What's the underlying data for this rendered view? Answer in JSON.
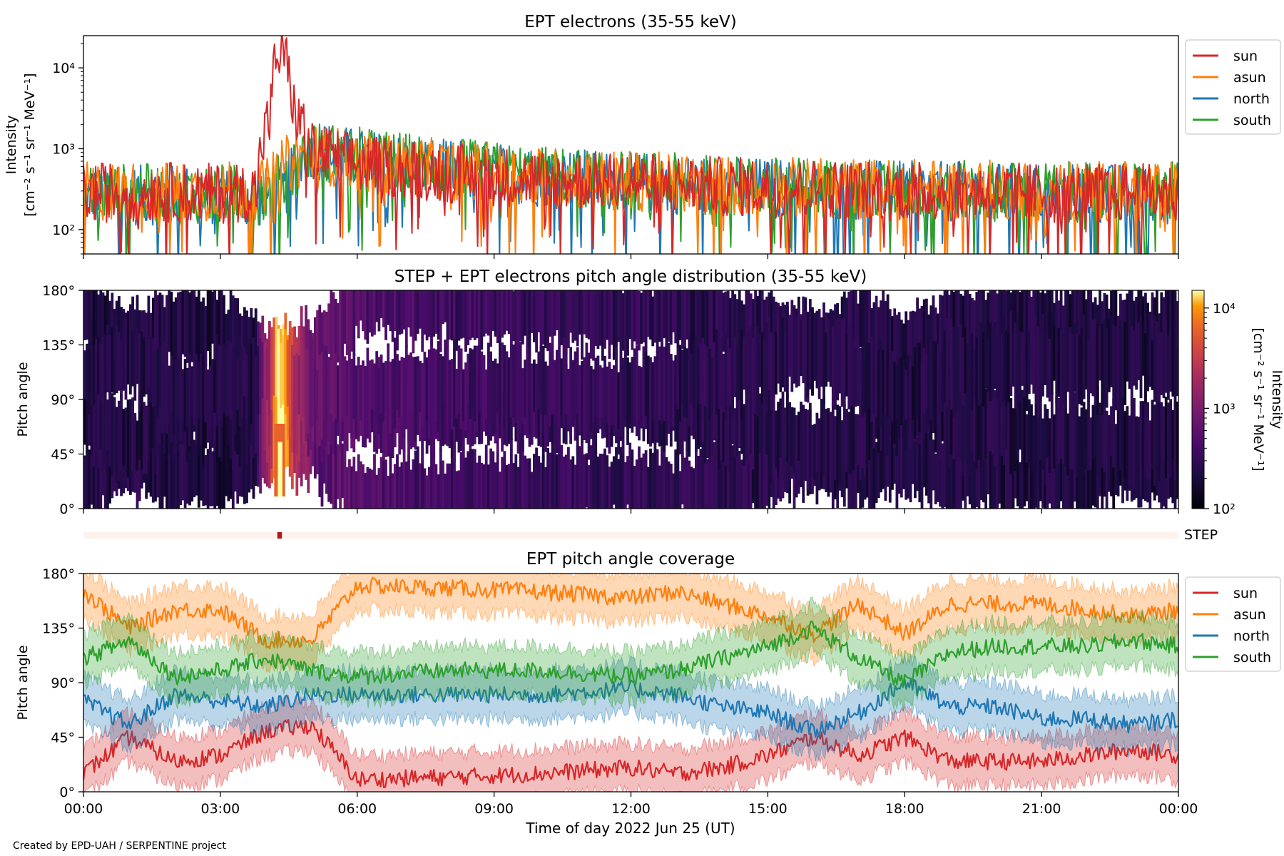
{
  "footer": {
    "credit": "Created by EPD-UAH / SERPENTINE project"
  },
  "colors": {
    "sun": "#d62728",
    "asun": "#ff7f0e",
    "north": "#1f77b4",
    "south": "#2ca02c"
  },
  "chart_data": [
    {
      "type": "line",
      "title": "EPT electrons (35-55 keV)",
      "xlabel": "",
      "ylabel": [
        "Intensity",
        "[cm⁻² s⁻¹ sr⁻¹ MeV⁻¹]"
      ],
      "yscale": "log",
      "ylim": [
        50,
        25000
      ],
      "yticks": [
        "10²",
        "10³",
        "10⁴"
      ],
      "xlim_hours": [
        0,
        24
      ],
      "legend_position": "right-outside-top",
      "legend": [
        "sun",
        "asun",
        "north",
        "south"
      ],
      "series": [
        {
          "name": "sun",
          "x_hours": [
            0,
            1,
            2,
            3,
            3.8,
            4.1,
            4.25,
            4.4,
            4.6,
            5,
            6,
            8,
            10,
            12,
            14,
            16,
            18,
            20,
            22,
            24
          ],
          "values": [
            280,
            300,
            290,
            280,
            300,
            2500,
            15000,
            14000,
            3000,
            900,
            650,
            500,
            420,
            380,
            340,
            320,
            300,
            290,
            280,
            280
          ]
        },
        {
          "name": "asun",
          "x_hours": [
            0,
            2,
            4,
            4.4,
            5,
            6,
            8,
            10,
            12,
            14,
            16,
            18,
            20,
            22,
            24
          ],
          "values": [
            300,
            290,
            310,
            600,
            900,
            700,
            550,
            450,
            400,
            350,
            330,
            320,
            310,
            300,
            300
          ]
        },
        {
          "name": "north",
          "x_hours": [
            0,
            2,
            4,
            4.4,
            5,
            6,
            8,
            10,
            12,
            14,
            16,
            18,
            20,
            22,
            24
          ],
          "values": [
            260,
            270,
            250,
            300,
            1000,
            750,
            550,
            450,
            390,
            340,
            320,
            300,
            290,
            280,
            270
          ]
        },
        {
          "name": "south",
          "x_hours": [
            0,
            2,
            4,
            4.4,
            5,
            6,
            8,
            10,
            12,
            14,
            16,
            18,
            20,
            22,
            24
          ],
          "values": [
            280,
            280,
            270,
            400,
            950,
            800,
            580,
            460,
            400,
            350,
            330,
            310,
            300,
            290,
            290
          ]
        }
      ]
    },
    {
      "type": "heatmap",
      "title": "STEP + EPT electrons pitch angle distribution (35-55 keV)",
      "xlabel": "",
      "ylabel": "Pitch angle",
      "ylim": [
        0,
        180
      ],
      "yticks": [
        "0°",
        "45°",
        "90°",
        "135°",
        "180°"
      ],
      "xlim_hours": [
        0,
        24
      ],
      "colorbar": {
        "label": [
          "Intensity",
          "[cm⁻² s⁻¹ sr⁻¹ MeV⁻¹]"
        ],
        "scale": "log",
        "range": [
          100,
          15000
        ],
        "ticks": [
          "10²",
          "10³",
          "10⁴"
        ],
        "colormap": "inferno"
      },
      "peak": {
        "time_hours": 4.3,
        "pitch_angle": [
          10,
          70
        ],
        "value": 15000
      }
    },
    {
      "type": "bar",
      "label": "STEP",
      "xlim_hours": [
        0,
        24
      ],
      "highlight_hours": [
        4.25,
        4.35
      ]
    },
    {
      "type": "line",
      "title": "EPT pitch angle coverage",
      "xlabel": "Time of day 2022 Jun 25 (UT)",
      "ylabel": "Pitch angle",
      "ylim": [
        0,
        180
      ],
      "yticks": [
        "0°",
        "45°",
        "90°",
        "135°",
        "180°"
      ],
      "xticks": [
        "00:00",
        "03:00",
        "06:00",
        "09:00",
        "12:00",
        "15:00",
        "18:00",
        "21:00",
        "00:00"
      ],
      "xlim_hours": [
        0,
        24
      ],
      "legend_position": "right-outside-top",
      "legend": [
        "sun",
        "asun",
        "north",
        "south"
      ],
      "series": [
        {
          "name": "sun",
          "x_hours": [
            0,
            1,
            2,
            3,
            4,
            5,
            6,
            8,
            10,
            12,
            13,
            14,
            15,
            16,
            17,
            18,
            19,
            20,
            21,
            22,
            23,
            24
          ],
          "values": [
            15,
            45,
            25,
            30,
            50,
            55,
            10,
            12,
            15,
            20,
            15,
            20,
            30,
            45,
            30,
            45,
            25,
            25,
            25,
            30,
            35,
            30
          ]
        },
        {
          "name": "asun",
          "x_hours": [
            0,
            1,
            2,
            3,
            4,
            5,
            6,
            8,
            10,
            12,
            13,
            14,
            15,
            16,
            17,
            18,
            19,
            20,
            21,
            22,
            23,
            24
          ],
          "values": [
            165,
            135,
            150,
            150,
            125,
            125,
            170,
            168,
            165,
            160,
            165,
            155,
            145,
            130,
            155,
            130,
            155,
            155,
            155,
            150,
            145,
            150
          ]
        },
        {
          "name": "north",
          "x_hours": [
            0,
            1,
            2,
            3,
            4,
            5,
            6,
            8,
            10,
            12,
            13,
            14,
            15,
            16,
            17,
            18,
            19,
            20,
            21,
            22,
            23,
            24
          ],
          "values": [
            75,
            55,
            80,
            75,
            70,
            80,
            80,
            80,
            80,
            85,
            80,
            70,
            65,
            50,
            65,
            90,
            70,
            70,
            60,
            60,
            55,
            60
          ]
        },
        {
          "name": "south",
          "x_hours": [
            0,
            1,
            2,
            3,
            4,
            5,
            6,
            8,
            10,
            12,
            13,
            14,
            15,
            16,
            17,
            18,
            19,
            20,
            21,
            22,
            23,
            24
          ],
          "values": [
            110,
            125,
            95,
            100,
            110,
            100,
            95,
            100,
            100,
            95,
            100,
            110,
            120,
            135,
            110,
            90,
            115,
            120,
            120,
            120,
            125,
            120
          ]
        }
      ]
    }
  ]
}
